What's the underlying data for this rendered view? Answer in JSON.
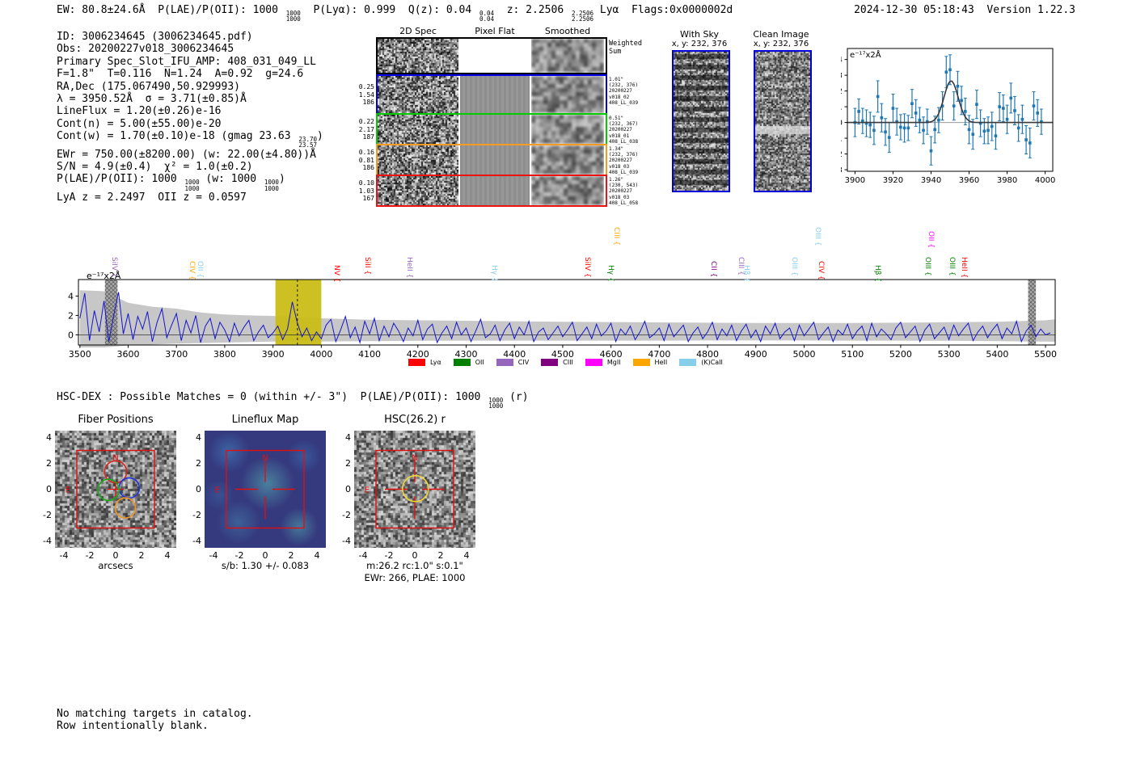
{
  "header": {
    "left": "EW: 80.8±24.6Å  P(LAE)/P(OII): 1000 ^{1000}_{1000}  P(Lyα): 0.999  Q(z): 0.04 ^{0.04}_{0.04}  z: 2.2506 ^{2.2506}_{2.2506} Lyα  Flags:0x0000002d",
    "right": "2024-12-30 05:18:43  Version 1.22.3"
  },
  "info_lines": [
    "ID: 3006234645 (3006234645.pdf)",
    "Obs: 20200227v018_3006234645",
    "Primary Spec_Slot_IFU_AMP: 408_031_049_LL",
    "F=1.8\"  T=0.116  N=1.24  A=0.92  g=24.6",
    "RA,Dec (175.067490,50.929993)",
    "λ = 3950.52Å  σ = 3.71(±0.85)Å",
    "LineFlux = 1.20(±0.26)e-16",
    "Cont(n) = 5.00(±55.00)e-20",
    "Cont(w) = 1.70(±0.10)e-18 (gmag 23.63 ^{23.70}_{23.57})",
    "EWr = 750.00(±8200.00) (w: 22.00(±4.80))Å",
    "S/N = 4.9(±0.4)  χ² = 1.0(±0.2)",
    "P(LAE)/P(OII): 1000 ^{1000}_{1000} (w: 1000 ^{1000}_{1000})",
    "LyA z = 2.2497  OII z = 0.0597"
  ],
  "cutouts": {
    "col_headers": [
      "2D Spec",
      "Pixel Flat",
      "Smoothed"
    ],
    "rows": [
      {
        "border": "#000000",
        "left": [],
        "right": [
          "Weighted",
          "Sum"
        ],
        "flat": "white"
      },
      {
        "border": "#0000ee",
        "left": [
          "0.25",
          "1.54",
          "186"
        ],
        "right": [
          "1.01\"",
          "(232, 376)",
          "20200227",
          "v018_02",
          "408_LL_039"
        ],
        "flat": "gray"
      },
      {
        "border": "#00cc00",
        "left": [
          "0.22",
          "2.17",
          "187"
        ],
        "right": [
          "0.51\"",
          "(232, 367)",
          "20200227",
          "v018_01",
          "408_LL_038"
        ],
        "flat": "gray"
      },
      {
        "border": "#f59b22",
        "left": [
          "0.16",
          "0.81",
          "186"
        ],
        "right": [
          "1.34\"",
          "(232, 376)",
          "20200227",
          "v018_03",
          "408_LL_039"
        ],
        "flat": "gray"
      },
      {
        "border": "#ee1111",
        "left": [
          "0.10",
          "1.03",
          "167"
        ],
        "right": [
          "1.26\"",
          "(230, 543)",
          "20200227",
          "v018_03",
          "408_LL_058"
        ],
        "flat": "gray"
      }
    ]
  },
  "sky_panels": [
    {
      "title": "With Sky",
      "subtitle": "x, y: 232, 376"
    },
    {
      "title": "Clean Image",
      "subtitle": "x, y: 232, 376"
    }
  ],
  "hsc_dex": "HSC-DEX : Possible Matches = 0 (within +/- 3\")  P(LAE)/P(OII): 1000 ^{1000}_{1000} (r)",
  "footer_lines": [
    "No matching targets in catalog.",
    "Row intentionally blank."
  ],
  "chart_data": [
    {
      "id": "line_fit_zoom",
      "type": "scatter",
      "inplot_label": "e⁻¹⁷x2Å",
      "xlim": [
        3896,
        4004
      ],
      "ylim": [
        -3.1,
        4.7
      ],
      "x_ticks": [
        3900,
        3920,
        3940,
        3960,
        3980,
        4000
      ],
      "y_ticks": [
        4,
        3,
        2,
        1,
        0,
        -1,
        -2,
        -3
      ],
      "point_color": "#1f77b4",
      "fit_color": "#3a3a3a",
      "fit": {
        "shape": "gaussian",
        "center": 3950.52,
        "sigma": 3.71,
        "amplitude": 2.65,
        "baseline": 0
      },
      "points": [
        [
          3900,
          0.0,
          0.9
        ],
        [
          3902,
          0.7,
          0.8
        ],
        [
          3904,
          0.1,
          0.8
        ],
        [
          3906,
          -0.05,
          0.85
        ],
        [
          3908,
          -0.15,
          0.8
        ],
        [
          3910,
          -0.5,
          0.9
        ],
        [
          3912,
          1.65,
          1.0
        ],
        [
          3914,
          0.3,
          0.9
        ],
        [
          3916,
          -0.6,
          0.85
        ],
        [
          3918,
          -0.95,
          0.95
        ],
        [
          3920,
          0.9,
          0.9
        ],
        [
          3922,
          0.05,
          0.85
        ],
        [
          3924,
          -0.3,
          0.8
        ],
        [
          3926,
          -0.35,
          0.9
        ],
        [
          3928,
          -0.35,
          0.8
        ],
        [
          3930,
          1.2,
          0.9
        ],
        [
          3932,
          0.6,
          0.85
        ],
        [
          3934,
          0.15,
          0.8
        ],
        [
          3936,
          -0.5,
          0.85
        ],
        [
          3938,
          0.05,
          0.8
        ],
        [
          3940,
          -1.8,
          0.9
        ],
        [
          3942,
          -0.45,
          0.85
        ],
        [
          3944,
          0.15,
          0.8
        ],
        [
          3946,
          1.05,
          0.9
        ],
        [
          3948,
          3.2,
          1.0
        ],
        [
          3950,
          3.35,
          0.95
        ],
        [
          3952,
          1.05,
          0.9
        ],
        [
          3954,
          2.3,
          0.95
        ],
        [
          3956,
          1.4,
          0.9
        ],
        [
          3958,
          0.7,
          0.85
        ],
        [
          3960,
          -0.45,
          0.9
        ],
        [
          3962,
          -0.75,
          0.95
        ],
        [
          3964,
          1.15,
          0.9
        ],
        [
          3966,
          -0.05,
          0.85
        ],
        [
          3968,
          -0.55,
          0.8
        ],
        [
          3970,
          -0.5,
          0.85
        ],
        [
          3972,
          -0.25,
          0.9
        ],
        [
          3974,
          -0.85,
          0.85
        ],
        [
          3976,
          1.0,
          0.9
        ],
        [
          3978,
          0.9,
          0.85
        ],
        [
          3980,
          0.2,
          0.9
        ],
        [
          3982,
          1.55,
          0.95
        ],
        [
          3984,
          0.75,
          0.9
        ],
        [
          3986,
          -0.35,
          0.85
        ],
        [
          3988,
          0.2,
          0.9
        ],
        [
          3990,
          -1.1,
          0.9
        ],
        [
          3992,
          -1.3,
          0.95
        ],
        [
          3994,
          1.05,
          0.9
        ],
        [
          3996,
          0.6,
          0.85
        ],
        [
          3998,
          0.05,
          0.8
        ]
      ]
    },
    {
      "id": "full_spectrum",
      "type": "line",
      "inplot_label": "e⁻¹⁷x2Å",
      "xlim": [
        3497,
        5520
      ],
      "ylim": [
        -1.05,
        5.7
      ],
      "x_ticks": [
        3500,
        3600,
        3700,
        3800,
        3900,
        4000,
        4100,
        4200,
        4300,
        4400,
        4500,
        4600,
        4700,
        4800,
        4900,
        5000,
        5100,
        5200,
        5300,
        5400,
        5500
      ],
      "y_ticks": [
        0,
        2,
        4
      ],
      "line_color": "#1414cc",
      "band_color": "#c9bd16",
      "highlight_band": [
        3905,
        4000
      ],
      "dashed_line": 3950.52,
      "masked_bands": [
        [
          3552,
          3578
        ],
        [
          5464,
          5480
        ]
      ],
      "x_start": 3500,
      "x_step": 10,
      "values": [
        1.7,
        4.3,
        -0.6,
        2.5,
        0.3,
        3.5,
        -0.7,
        2.0,
        4.4,
        0.1,
        2.2,
        -0.5,
        1.9,
        0.6,
        2.4,
        -0.7,
        1.3,
        2.7,
        -0.3,
        1.0,
        2.2,
        -0.6,
        1.5,
        0.2,
        2.0,
        -0.8,
        0.9,
        1.7,
        -0.4,
        1.3,
        0.5,
        -0.7,
        1.2,
        -0.1,
        0.8,
        1.5,
        -0.6,
        0.3,
        1.0,
        -0.3,
        0.2,
        0.9,
        -0.5,
        0.6,
        3.4,
        1.3,
        -0.2,
        0.7,
        -0.6,
        0.3,
        -0.4,
        1.0,
        1.6,
        -0.7,
        0.5,
        1.9,
        -0.3,
        0.8,
        -0.8,
        1.4,
        0.1,
        1.7,
        -0.6,
        0.9,
        -0.2,
        1.2,
        0.4,
        -0.7,
        0.7,
        -0.1,
        1.5,
        -0.5,
        0.6,
        1.1,
        -0.8,
        0.2,
        0.9,
        -0.4,
        1.3,
        0.0,
        0.7,
        -0.7,
        0.4,
        1.6,
        -0.3,
        0.1,
        1.0,
        -0.6,
        0.5,
        1.2,
        -0.4,
        0.8,
        0.0,
        1.4,
        -0.7,
        0.3,
        0.7,
        -0.5,
        0.2,
        0.9,
        -0.2,
        0.5,
        1.3,
        -0.6,
        0.1,
        0.8,
        -0.4,
        1.1,
        -0.1,
        0.4,
        1.2,
        -0.7,
        0.6,
        0.0,
        0.9,
        -0.5,
        0.3,
        1.4,
        -0.3,
        0.1,
        0.7,
        -0.6,
        1.1,
        -0.2,
        0.4,
        1.0,
        -0.7,
        0.2,
        0.8,
        -0.4,
        0.3,
        1.3,
        -0.5,
        0.6,
        -0.1,
        1.0,
        -0.6,
        0.4,
        1.1,
        -0.3,
        0.5,
        -0.7,
        0.9,
        0.1,
        1.2,
        -0.4,
        0.3,
        0.7,
        -0.6,
        1.0,
        -0.1,
        0.6,
        1.3,
        -0.5,
        0.2,
        0.8,
        -0.7,
        0.5,
        0.0,
        1.1,
        -0.4,
        0.4,
        0.9,
        -0.6,
        1.2,
        -0.2,
        0.6,
        0.1,
        -0.5,
        0.7,
        1.3,
        -0.3,
        0.3,
        0.9,
        -0.7,
        0.5,
        1.1,
        -0.4,
        0.2,
        0.8,
        -0.5,
        1.0,
        -0.1,
        0.6,
        1.2,
        -0.6,
        0.3,
        0.9,
        -0.3,
        0.5,
        1.1,
        -0.4,
        0.7,
        0.1,
        1.4,
        -0.7,
        0.4,
        1.0,
        -0.2,
        0.6,
        0.0,
        0.2
      ],
      "envelope": [
        [
          3500,
          4.6,
          -1.3
        ],
        [
          3550,
          4.5,
          -1.3
        ],
        [
          3600,
          3.3,
          -1.1
        ],
        [
          3650,
          2.9,
          -1.0
        ],
        [
          3700,
          2.7,
          -0.9
        ],
        [
          3750,
          2.3,
          -0.85
        ],
        [
          3800,
          2.1,
          -0.8
        ],
        [
          3850,
          2.0,
          -0.75
        ],
        [
          3900,
          1.95,
          -0.7
        ],
        [
          3950,
          1.85,
          -0.7
        ],
        [
          4000,
          1.7,
          -0.68
        ],
        [
          4100,
          1.55,
          -0.65
        ],
        [
          4200,
          1.5,
          -0.62
        ],
        [
          4300,
          1.45,
          -0.6
        ],
        [
          4400,
          1.4,
          -0.6
        ],
        [
          4500,
          1.35,
          -0.6
        ],
        [
          4600,
          1.32,
          -0.6
        ],
        [
          4700,
          1.28,
          -0.6
        ],
        [
          4800,
          1.25,
          -0.58
        ],
        [
          4900,
          1.22,
          -0.58
        ],
        [
          5000,
          1.22,
          -0.58
        ],
        [
          5100,
          1.22,
          -0.6
        ],
        [
          5200,
          1.25,
          -0.6
        ],
        [
          5300,
          1.3,
          -0.62
        ],
        [
          5400,
          1.35,
          -0.65
        ],
        [
          5500,
          1.5,
          -0.7
        ],
        [
          5520,
          1.6,
          -0.72
        ]
      ],
      "legend": [
        {
          "label": "Lyα",
          "color": "#ff0000"
        },
        {
          "label": "OII",
          "color": "#008000"
        },
        {
          "label": "CIV",
          "color": "#9467bd"
        },
        {
          "label": "CIII",
          "color": "#800080"
        },
        {
          "label": "MgII",
          "color": "#ff00ff"
        },
        {
          "label": "HeII",
          "color": "#ffa500"
        },
        {
          "label": "(K)CaII",
          "color": "#87ceeb"
        }
      ],
      "line_labels": [
        {
          "wl": 3570,
          "text": "SiIV {",
          "color": "#9467bd",
          "tier": 0
        },
        {
          "wl": 3732,
          "text": "CIV {",
          "color": "#ffa500",
          "tier": 0
        },
        {
          "wl": 3748,
          "text": "OII {",
          "color": "#87ceeb",
          "tier": 0
        },
        {
          "wl": 4032,
          "text": "NV {",
          "color": "#ff0000",
          "tier": 0
        },
        {
          "wl": 4095,
          "text": "SiII {",
          "color": "#ff0000",
          "tier": 0
        },
        {
          "wl": 4182,
          "text": "HeII {",
          "color": "#9467bd",
          "tier": 0
        },
        {
          "wl": 4358,
          "text": "Hγ {",
          "color": "#87ceeb",
          "tier": 0
        },
        {
          "wl": 4550,
          "text": "SiIV {",
          "color": "#ff0000",
          "tier": 0
        },
        {
          "wl": 4599,
          "text": "Hγ {",
          "color": "#008000",
          "tier": 0
        },
        {
          "wl": 4610,
          "text": "CIII {",
          "color": "#ffa500",
          "tier": 1
        },
        {
          "wl": 4812,
          "text": "CII {",
          "color": "#800080",
          "tier": 0
        },
        {
          "wl": 4868,
          "text": "CIII {",
          "color": "#9467bd",
          "tier": 0
        },
        {
          "wl": 4881,
          "text": "Hβ {",
          "color": "#87ceeb",
          "tier": 0
        },
        {
          "wl": 4979,
          "text": "OIII {",
          "color": "#87ceeb",
          "tier": 0
        },
        {
          "wl": 5027,
          "text": "OIII {",
          "color": "#87ceeb",
          "tier": 1
        },
        {
          "wl": 5034,
          "text": "CIV {",
          "color": "#ff0000",
          "tier": 0
        },
        {
          "wl": 5151,
          "text": "Hβ {",
          "color": "#008000",
          "tier": 0
        },
        {
          "wl": 5255,
          "text": "OIII {",
          "color": "#008000",
          "tier": 0
        },
        {
          "wl": 5262,
          "text": "OII {",
          "color": "#ff00ff",
          "tier": 1
        },
        {
          "wl": 5306,
          "text": "OIII {",
          "color": "#008000",
          "tier": 0
        },
        {
          "wl": 5330,
          "text": "HeII {",
          "color": "#ff0000",
          "tier": 0
        }
      ]
    },
    {
      "id": "fiber_positions",
      "type": "image_overlay",
      "title": "Fiber Positions",
      "xlabel": "arcsecs",
      "ticks": [
        -4,
        -2,
        0,
        2,
        4
      ],
      "square": [
        -3,
        3
      ],
      "compass": [
        "N",
        "E"
      ],
      "crosshair": "small",
      "circles": [
        {
          "x": 0.0,
          "y": 1.35,
          "r": 0.85,
          "color": "#dd2222"
        },
        {
          "x": 1.05,
          "y": 0.1,
          "r": 0.78,
          "color": "#2233dd"
        },
        {
          "x": -0.55,
          "y": -0.05,
          "r": 0.82,
          "color": "#18aa18"
        },
        {
          "x": 0.75,
          "y": -1.45,
          "r": 0.78,
          "color": "#f09422"
        }
      ]
    },
    {
      "id": "lineflux_map",
      "type": "image_overlay",
      "title": "Lineflux Map",
      "xlabel": "s/b: 1.30 +/- 0.083",
      "ticks": [
        -4,
        -2,
        0,
        2,
        4
      ],
      "square": [
        -3,
        3
      ],
      "compass": [
        "N",
        "E"
      ],
      "crosshair": "gap",
      "circles": []
    },
    {
      "id": "hsc_r",
      "type": "image_overlay",
      "title": "HSC(26.2) r",
      "xlabel": "m:26.2 rc:1.0\" s:0.1\"",
      "xlabel2": "EWr: 266, PLAE: 1000",
      "ticks": [
        -4,
        -2,
        0,
        2,
        4
      ],
      "square": [
        -3,
        3
      ],
      "compass": [
        "N",
        "E"
      ],
      "crosshair": "gap",
      "circles": [
        {
          "x": 0.05,
          "y": 0.05,
          "r": 1.0,
          "color": "#eed734"
        }
      ]
    }
  ]
}
